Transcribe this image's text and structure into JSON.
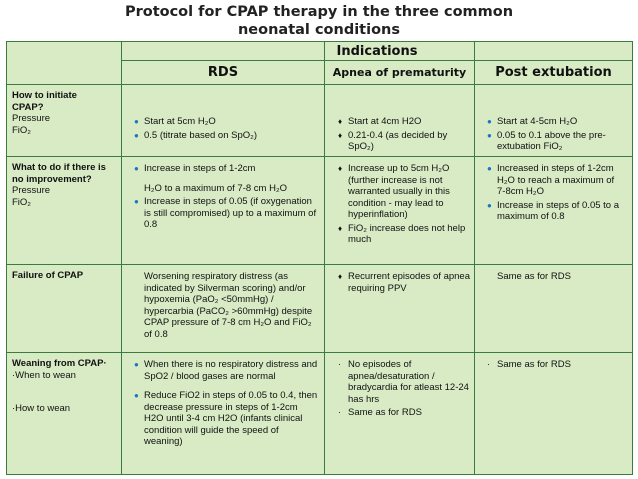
{
  "title": {
    "line1": "Protocol for CPAP therapy in the three common",
    "line2": "neonatal conditions"
  },
  "header": {
    "group": "Indications",
    "columns": [
      "RDS",
      "Apnea of prematurity",
      "Post extubation"
    ]
  },
  "rows": {
    "initiate": {
      "label": [
        "How to initiate",
        "CPAP?"
      ],
      "sub": [
        "Pressure",
        "FiO₂"
      ],
      "rds": [
        "Start  at 5cm H₂O",
        "0.5 (titrate based on SpO₂)"
      ],
      "apnea": [
        "Start at 4cm H2O",
        "0.21-0.4 (as decided by SpO₂)"
      ],
      "post": [
        "Start at 4-5cm H₂O",
        "0.05 to 0.1 above the pre-extubation FiO₂"
      ]
    },
    "improve": {
      "label": [
        "What to do if there is",
        "no improvement?"
      ],
      "sub": [
        "Pressure",
        "FiO₂"
      ],
      "rds": [
        "Increase in steps of 1-2cm",
        "H₂O to a maximum of 7-8 cm H₂O",
        "Increase in steps of 0.05 (if oxygenation is still compromised) up to a maximum of 0.8"
      ],
      "apnea": [
        "Increase up to 5cm H₂O (further increase is not warranted usually in this condition - may lead to hyperinflation)",
        "FiO₂ increase does not help much"
      ],
      "post": [
        "Increased in steps of 1-2cm H₂O to reach a maximum of 7-8cm H₂O",
        "Increase in steps of 0.05 to a maximum of 0.8"
      ]
    },
    "failure": {
      "label": [
        "Failure of CPAP"
      ],
      "rds": [
        "Worsening respiratory distress (as indicated by Silverman scoring) and/or hypoxemia (PaO₂ <50mmHg) / hypercarbia (PaCO₂ >60mmHg) despite CPAP pressure of 7-8 cm H₂O and FiO₂ of 0.8"
      ],
      "apnea": [
        "Recurrent episodes of apnea requiring PPV"
      ],
      "post": [
        "Same as for RDS"
      ]
    },
    "weaning": {
      "label": [
        "Weaning from CPAP·"
      ],
      "sub": [
        "·When to wean",
        "·How to wean"
      ],
      "rds": [
        "When there is no respiratory distress and SpO2 / blood gases are normal",
        "Reduce FiO2 in steps of 0.05 to 0.4, then decrease pressure in steps of 1-2cm H2O until 3-4 cm H2O (infants clinical condition will guide the speed of weaning)"
      ],
      "apnea": [
        "No episodes of apnea/desaturation / bradycardia for atleast 12-24 has hrs",
        "Same as for RDS"
      ],
      "post": [
        "Same as for RDS"
      ]
    }
  }
}
